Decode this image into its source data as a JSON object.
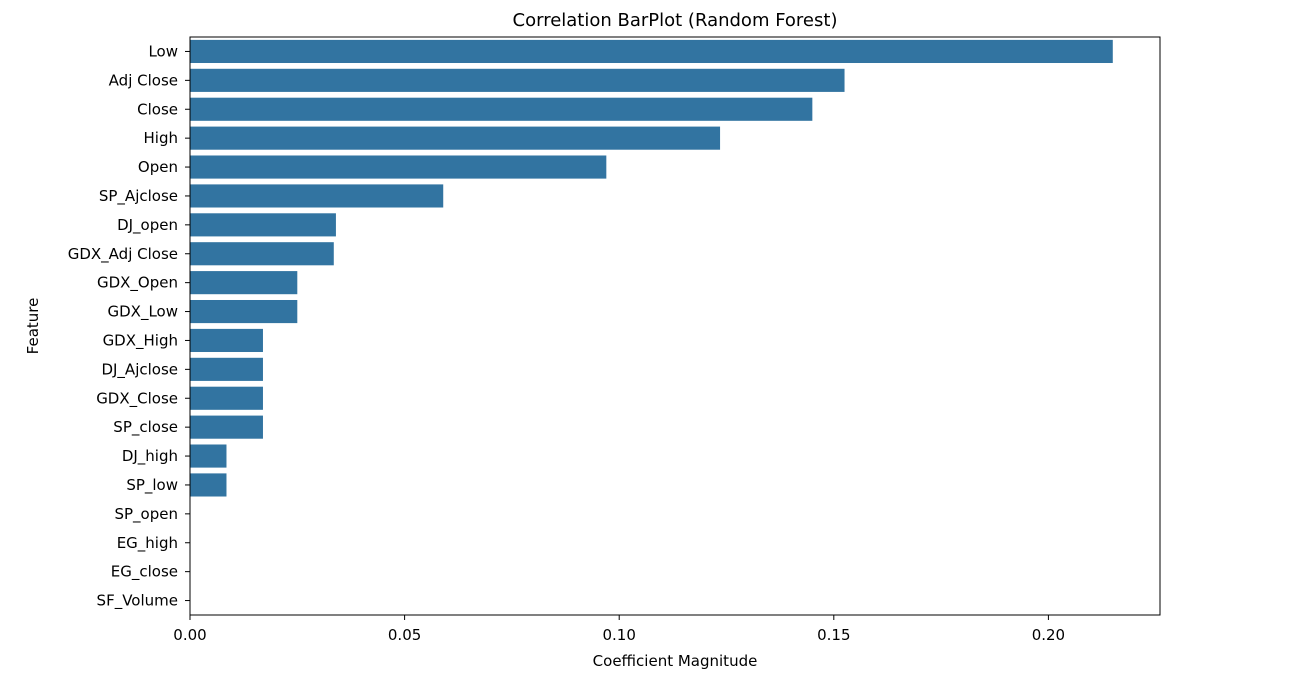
{
  "chart_data": {
    "type": "bar",
    "orientation": "horizontal",
    "title": "Correlation BarPlot (Random Forest)",
    "xlabel": "Coefficient Magnitude",
    "ylabel": "Feature",
    "xlim": [
      0,
      0.226
    ],
    "xticks": [
      "0.00",
      "0.05",
      "0.10",
      "0.15",
      "0.20"
    ],
    "xtick_values": [
      0,
      0.05,
      0.1,
      0.15,
      0.2
    ],
    "bar_color": "#3274a1",
    "grid": false,
    "categories": [
      "Low",
      "Adj Close",
      "Close",
      "High",
      "Open",
      "SP_Ajclose",
      "DJ_open",
      "GDX_Adj Close",
      "GDX_Open",
      "GDX_Low",
      "GDX_High",
      "DJ_Ajclose",
      "GDX_Close",
      "SP_close",
      "DJ_high",
      "SP_low",
      "SP_open",
      "EG_high",
      "EG_close",
      "SF_Volume"
    ],
    "values": [
      0.215,
      0.1525,
      0.145,
      0.1235,
      0.097,
      0.059,
      0.034,
      0.0335,
      0.025,
      0.025,
      0.017,
      0.017,
      0.017,
      0.017,
      0.0085,
      0.0085,
      0,
      0,
      0,
      0
    ]
  }
}
